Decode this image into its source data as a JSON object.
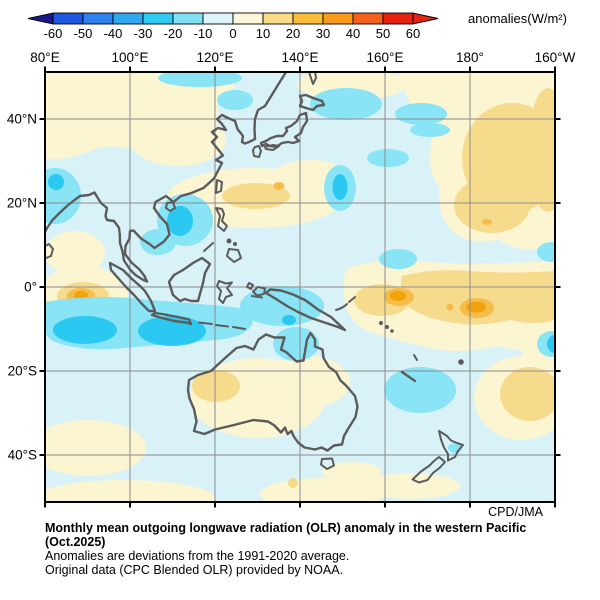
{
  "colorbar": {
    "label": "anomalies(W/m²)",
    "tick_labels": [
      "-60",
      "-50",
      "-40",
      "-30",
      "-20",
      "-10",
      "0",
      "10",
      "20",
      "30",
      "40",
      "50",
      "60"
    ],
    "segment_colors": [
      "#1E56E0",
      "#2E80EC",
      "#2FA8F0",
      "#2FCBF3",
      "#7FE1F3",
      "#DCF3F9",
      "#FDF7DA",
      "#FADC86",
      "#FBBE3C",
      "#FA9C1B",
      "#F4611B",
      "#E62210"
    ],
    "left_arrow_color": "#18188C",
    "right_arrow_color": "#E62210"
  },
  "map": {
    "lon_labels": [
      "80°E",
      "100°E",
      "120°E",
      "140°E",
      "160°E",
      "180°",
      "160°W"
    ],
    "lat_labels": [
      "40°N",
      "20°N",
      "0°",
      "20°S",
      "40°S"
    ],
    "credit": "CPD/JMA",
    "palette": {
      "sea_base": "#D9F2F8",
      "pos_0_10": "#FBF5D2",
      "pos_10_20": "#F7DB8D",
      "pos_20_30": "#F5BC49",
      "pos_30_40": "#F0A30B",
      "neg_10_20": "#89E4F5",
      "neg_20_30": "#2BC9F2",
      "coastline": "#5B5B5B",
      "grid": "#8C8C8C",
      "frame": "#000000"
    }
  },
  "caption": {
    "title_lines": [
      "Monthly mean outgoing longwave radiation (OLR) anomaly in the western Pacific",
      "(Oct.2025)"
    ],
    "note1": "Anomalies are deviations from the 1991-2020 average.",
    "note2": "Original data (CPC Blended OLR) provided by NOAA."
  },
  "chart_data": {
    "type": "heatmap",
    "title": "Monthly mean OLR anomaly in the western Pacific (Oct.2025)",
    "units": "W/m2",
    "lon_range": [
      "80°E",
      "160°W"
    ],
    "lat_range": [
      "50°S",
      "50°N"
    ],
    "colorbar_scale": [
      -60,
      -50,
      -40,
      -30,
      -20,
      -10,
      0,
      10,
      20,
      30,
      40,
      50,
      60
    ],
    "legend_position": "top",
    "grid": true,
    "anomaly_features": [
      {
        "sign": "negative",
        "center": "88E 10S",
        "extent": "80-95E, 6-15S",
        "level": "-20 to -30"
      },
      {
        "sign": "negative",
        "center": "110E 11S",
        "extent": "98-118E, 6-16S",
        "level": "-20 to -30"
      },
      {
        "sign": "negative",
        "center": "130E 5S",
        "extent": "Maritime Continent / Banda Sea",
        "level": "-10 to -20"
      },
      {
        "sign": "negative",
        "center": "111E 15N",
        "extent": "South China Sea",
        "level": "-20 to -30"
      },
      {
        "sign": "negative",
        "center": "82E 25N",
        "extent": "left edge near Bay of Bengal",
        "level": "-20 to -30"
      },
      {
        "sign": "negative",
        "center": "150E 24N",
        "extent": "small oval east of Japan",
        "level": "-20 to -30"
      },
      {
        "sign": "negative",
        "center": "168E 24S",
        "extent": "around New Caledonia",
        "level": "-10 to -20"
      },
      {
        "sign": "negative",
        "center": "199E 14S",
        "extent": "right edge",
        "level": "-20 to -30"
      },
      {
        "sign": "positive",
        "center": "163E 3S",
        "extent": "equatorial central Pacific",
        "level": "+30 to +40 core"
      },
      {
        "sign": "positive",
        "center": "181E 6S",
        "extent": "near date line",
        "level": "+30 to +40 core"
      },
      {
        "sign": "positive",
        "center": "85E 2S",
        "extent": "far west equator",
        "level": "+30 to +40 core"
      },
      {
        "sign": "positive",
        "center": "190E 28N",
        "extent": "large NE blob",
        "level": "+10 to +20"
      },
      {
        "sign": "positive",
        "center": "194E 26S",
        "extent": "SE blob",
        "level": "+10 to +20"
      },
      {
        "sign": "positive",
        "center": "120E 25-50N and Australia interior",
        "extent": "broad",
        "level": "0 to +10"
      }
    ]
  }
}
